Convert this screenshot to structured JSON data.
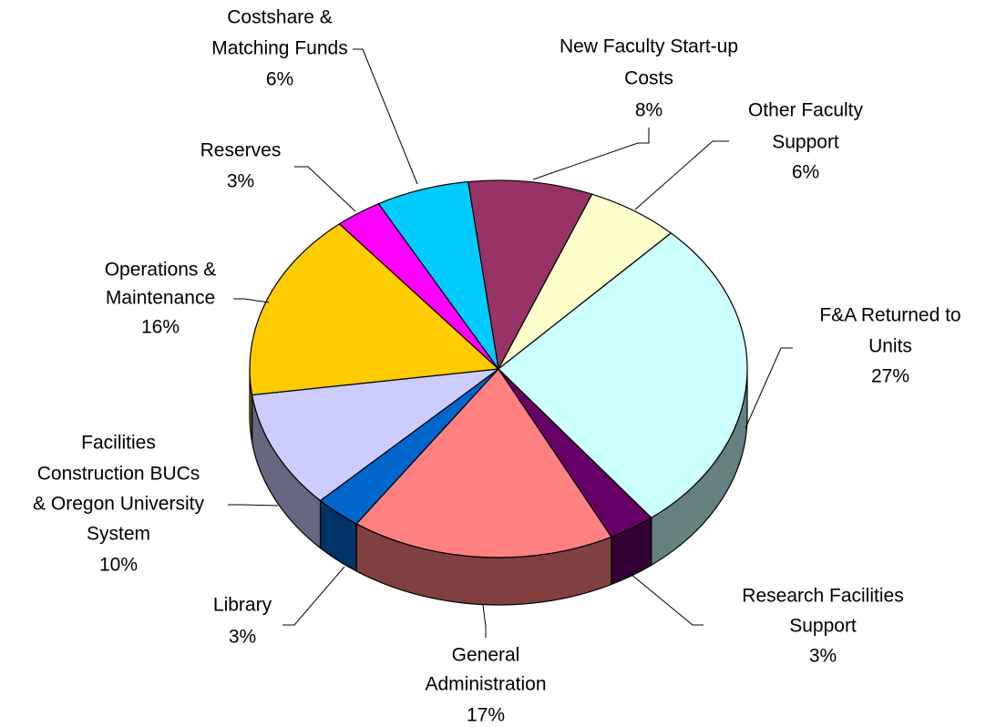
{
  "chart_data": {
    "type": "pie3d",
    "categories": [
      "New Faculty Start-up\nCosts",
      "Other Faculty\nSupport",
      "F&A Returned to\nUnits",
      "Research Facilities\nSupport",
      "General\nAdministration",
      "Library",
      "Facilities\nConstruction BUCs\n& Oregon University\nSystem",
      "Operations &\nMaintenance",
      "Reserves",
      "Costshare &\nMatching Funds"
    ],
    "values": [
      8,
      6,
      27,
      3,
      17,
      3,
      10,
      16,
      3,
      6
    ],
    "value_labels": [
      "8%",
      "6%",
      "27%",
      "3%",
      "17%",
      "3%",
      "10%",
      "16%",
      "3%",
      "6%"
    ],
    "colors": [
      "#993366",
      "#ffffcc",
      "#ccffff",
      "#660066",
      "#ff8080",
      "#0066cc",
      "#ccccff",
      "#ffcc00",
      "#ff00ff",
      "#00ccff"
    ]
  }
}
